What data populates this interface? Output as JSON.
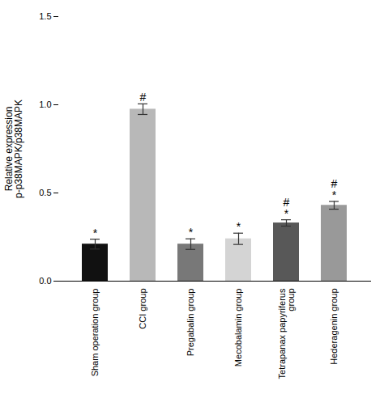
{
  "chart_data": {
    "type": "bar",
    "categories": [
      "Sham operation group",
      "CCI group",
      "Pregabalin group",
      "Mecobalamin group",
      "Tetrapanax papyriferus\ngroup",
      "Hederagenin group"
    ],
    "values": [
      0.21,
      0.975,
      0.21,
      0.24,
      0.33,
      0.43
    ],
    "errors": [
      0.028,
      0.03,
      0.03,
      0.032,
      0.018,
      0.022
    ],
    "colors": [
      "#111111",
      "#b8b8b8",
      "#787878",
      "#d4d4d4",
      "#585858",
      "#999999"
    ],
    "annotations": [
      [
        "*"
      ],
      [
        "#"
      ],
      [
        "*"
      ],
      [
        "*"
      ],
      [
        "*",
        "#"
      ],
      [
        "*",
        "#"
      ]
    ],
    "ylabel": "Relative expression\np-p38MAPK/p38MAPK",
    "ylim": [
      0.0,
      1.5
    ],
    "yticks": [
      {
        "value": 0.0,
        "label": "0.0"
      },
      {
        "value": 0.5,
        "label": "0.5"
      },
      {
        "value": 1.0,
        "label": "1.0"
      },
      {
        "value": 1.5,
        "label": "1.5"
      }
    ],
    "grid": false
  }
}
